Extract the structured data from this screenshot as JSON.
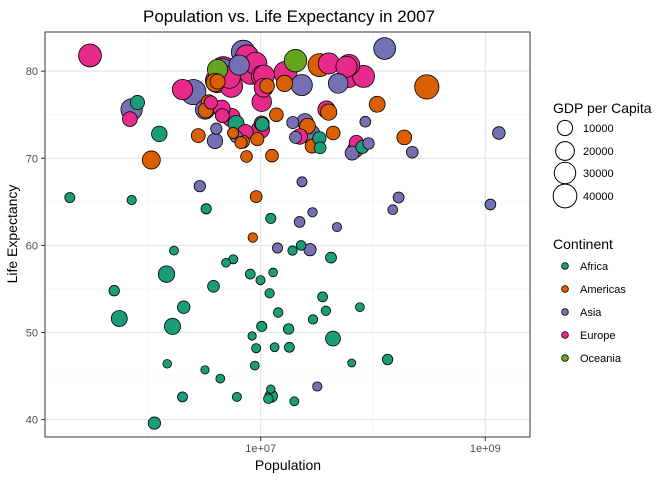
{
  "chart_data": {
    "type": "scatter",
    "title": "Population vs. Life Expectancy in 2007",
    "xlabel": "Population",
    "ylabel": "Life Expectancy",
    "x_scale": "log10",
    "xlim": [
      120000,
      2500000000
    ],
    "ylim": [
      38,
      84.5
    ],
    "x_ticks": [
      10000000,
      1000000000
    ],
    "x_tick_labels": [
      "1e+07",
      "1e+09"
    ],
    "y_ticks": [
      40,
      50,
      60,
      70,
      80
    ],
    "y_tick_labels": [
      "40",
      "50",
      "60",
      "70",
      "80"
    ],
    "grid": true,
    "legend_position": "right",
    "size_legend": {
      "title": "GDP per Capita",
      "entries": [
        {
          "label": "10000",
          "value": 10000
        },
        {
          "label": "20000",
          "value": 20000
        },
        {
          "label": "30000",
          "value": 30000
        },
        {
          "label": "40000",
          "value": 40000
        }
      ]
    },
    "color_legend": {
      "title": "Continent",
      "entries": [
        {
          "label": "Africa",
          "color": "#1B9E77"
        },
        {
          "label": "Americas",
          "color": "#D95F02"
        },
        {
          "label": "Asia",
          "color": "#7570B3"
        },
        {
          "label": "Europe",
          "color": "#E7298A"
        },
        {
          "label": "Oceania",
          "color": "#66A61E"
        }
      ]
    },
    "series": [
      {
        "name": "Africa",
        "color": "#1B9E77",
        "points": [
          [
            33300000,
            72.3,
            6223
          ],
          [
            12400000,
            42.7,
            4797
          ],
          [
            8080000,
            56.7,
            1441
          ],
          [
            1640000,
            50.7,
            12570
          ],
          [
            14300000,
            52.3,
            1217
          ],
          [
            8390000,
            49.6,
            430
          ],
          [
            17700000,
            50.4,
            2042
          ],
          [
            4370000,
            44.7,
            706
          ],
          [
            10200000,
            50.7,
            1704
          ],
          [
            710000,
            65.2,
            986
          ],
          [
            64600000,
            46.5,
            278
          ],
          [
            3800000,
            55.3,
            3633
          ],
          [
            18000000,
            48.3,
            1545
          ],
          [
            496000,
            54.8,
            2082
          ],
          [
            80300000,
            71.3,
            5581
          ],
          [
            551000,
            51.6,
            12154
          ],
          [
            4910000,
            58.0,
            641
          ],
          [
            76500000,
            52.9,
            691
          ],
          [
            1450000,
            56.7,
            13206
          ],
          [
            1690000,
            59.4,
            753
          ],
          [
            22900000,
            60.0,
            1328
          ],
          [
            9950000,
            56.0,
            943
          ],
          [
            1470000,
            46.4,
            579
          ],
          [
            35600000,
            54.1,
            1463
          ],
          [
            2010000,
            42.6,
            1569
          ],
          [
            3190000,
            45.7,
            415
          ],
          [
            6040000,
            74.0,
            12057
          ],
          [
            19200000,
            59.4,
            1045
          ],
          [
            13300000,
            48.3,
            759
          ],
          [
            12000000,
            54.5,
            1042
          ],
          [
            3270000,
            64.2,
            1803
          ],
          [
            1250000,
            72.8,
            10957
          ],
          [
            33800000,
            71.2,
            3820
          ],
          [
            19900000,
            42.1,
            824
          ],
          [
            2060000,
            52.9,
            4811
          ],
          [
            12900000,
            56.9,
            620
          ],
          [
            135000000,
            46.9,
            2014
          ],
          [
            799000,
            76.4,
            7670
          ],
          [
            8860000,
            46.2,
            737
          ],
          [
            199579,
            65.5,
            1598
          ],
          [
            12300000,
            63.1,
            1712
          ],
          [
            6140000,
            42.6,
            863
          ],
          [
            9120000,
            48.2,
            926
          ],
          [
            43997828,
            49.3,
            9270
          ],
          [
            42300000,
            58.6,
            2602
          ],
          [
            1130000,
            39.6,
            4513
          ],
          [
            38100000,
            52.5,
            1107
          ],
          [
            5700000,
            58.4,
            883
          ],
          [
            10300000,
            73.9,
            7093
          ],
          [
            29200000,
            51.5,
            1056
          ],
          [
            11700000,
            42.4,
            1271
          ],
          [
            12300000,
            43.5,
            470
          ]
        ]
      },
      {
        "name": "Americas",
        "color": "#D95F02",
        "points": [
          [
            40300000,
            75.3,
            12779
          ],
          [
            9120000,
            65.6,
            3822
          ],
          [
            190000000,
            72.4,
            9066
          ],
          [
            33400000,
            80.7,
            36319
          ],
          [
            16300000,
            78.6,
            13172
          ],
          [
            44200000,
            72.9,
            7007
          ],
          [
            4130000,
            78.8,
            9645
          ],
          [
            11400000,
            78.3,
            8948
          ],
          [
            9320000,
            72.2,
            6025
          ],
          [
            13800000,
            75.0,
            6873
          ],
          [
            6940000,
            71.9,
            5728
          ],
          [
            12600000,
            70.3,
            5186
          ],
          [
            8500000,
            60.9,
            1202
          ],
          [
            7480000,
            70.2,
            3548
          ],
          [
            2780000,
            72.6,
            7321
          ],
          [
            109000000,
            76.2,
            11978
          ],
          [
            5680000,
            72.9,
            2749
          ],
          [
            3240000,
            75.5,
            9809
          ],
          [
            6670000,
            71.8,
            4173
          ],
          [
            28700000,
            71.4,
            7409
          ],
          [
            3940000,
            78.7,
            19329
          ],
          [
            1060000,
            69.8,
            18009
          ],
          [
            301000000,
            78.2,
            42952
          ],
          [
            3450000,
            76.4,
            10611
          ],
          [
            26100000,
            73.7,
            11416
          ]
        ]
      },
      {
        "name": "Asia",
        "color": "#7570B3",
        "points": [
          [
            31900000,
            43.8,
            975
          ],
          [
            708573,
            75.6,
            29796
          ],
          [
            150000000,
            64.1,
            1391
          ],
          [
            14100000,
            59.7,
            1714
          ],
          [
            1320000000,
            72.9,
            4959
          ],
          [
            6980000,
            82.2,
            39725
          ],
          [
            1110000000,
            64.7,
            2452
          ],
          [
            224000000,
            70.7,
            3541
          ],
          [
            69500000,
            71.0,
            11606
          ],
          [
            27500000,
            59.5,
            4471
          ],
          [
            6430000,
            80.7,
            25523
          ],
          [
            127000000,
            82.6,
            31656
          ],
          [
            6050000,
            72.5,
            4519
          ],
          [
            23300000,
            67.3,
            1593
          ],
          [
            49000000,
            78.6,
            23348
          ],
          [
            2510000,
            77.6,
            47307
          ],
          [
            3920000,
            72.0,
            10461
          ],
          [
            24800000,
            74.2,
            12452
          ],
          [
            2870000,
            66.8,
            3096
          ],
          [
            47800000,
            62.1,
            944
          ],
          [
            28900000,
            63.8,
            1091
          ],
          [
            3200000,
            75.6,
            22316
          ],
          [
            169000000,
            65.5,
            2606
          ],
          [
            91100000,
            71.7,
            3190
          ],
          [
            27600000,
            72.8,
            21655
          ],
          [
            4550000,
            80.0,
            47143
          ],
          [
            20400000,
            72.4,
            3970
          ],
          [
            19300000,
            74.1,
            4185
          ],
          [
            23200000,
            78.4,
            28718
          ],
          [
            65100000,
            70.6,
            7458
          ],
          [
            85300000,
            74.2,
            2442
          ],
          [
            4020000,
            73.4,
            3025
          ],
          [
            22200000,
            62.7,
            2281
          ]
        ]
      },
      {
        "name": "Europe",
        "color": "#E7298A",
        "points": [
          [
            3600000,
            76.4,
            5937
          ],
          [
            8200000,
            79.8,
            36126
          ],
          [
            10400000,
            79.4,
            33693
          ],
          [
            4550000,
            74.9,
            7446
          ],
          [
            7320000,
            73.0,
            10681
          ],
          [
            4490000,
            75.7,
            14619
          ],
          [
            10200000,
            76.5,
            22833
          ],
          [
            5470000,
            78.3,
            35278
          ],
          [
            5240000,
            79.3,
            33207
          ],
          [
            61100000,
            80.7,
            30470
          ],
          [
            82400000,
            79.4,
            32170
          ],
          [
            10700000,
            79.5,
            27538
          ],
          [
            9960000,
            73.3,
            18009
          ],
          [
            301931,
            81.8,
            36181
          ],
          [
            4110000,
            78.9,
            40676
          ],
          [
            58100000,
            80.5,
            28570
          ],
          [
            684736,
            74.5,
            9254
          ],
          [
            16600000,
            79.8,
            36798
          ],
          [
            4630000,
            80.2,
            49357
          ],
          [
            38500000,
            75.6,
            15390
          ],
          [
            10600000,
            78.1,
            20510
          ],
          [
            22300000,
            72.5,
            10808
          ],
          [
            10200000,
            74.0,
            9787
          ],
          [
            5450000,
            74.7,
            18678
          ],
          [
            2010000,
            77.9,
            25768
          ],
          [
            40400000,
            80.9,
            28821
          ],
          [
            9030000,
            80.9,
            33860
          ],
          [
            7550000,
            81.7,
            37506
          ],
          [
            71200000,
            71.8,
            8458
          ],
          [
            60800000,
            79.4,
            33203
          ]
        ]
      },
      {
        "name": "Oceania",
        "color": "#66A61E",
        "points": [
          [
            20400000,
            81.2,
            34435
          ],
          [
            4120000,
            80.2,
            25185
          ]
        ]
      }
    ]
  }
}
